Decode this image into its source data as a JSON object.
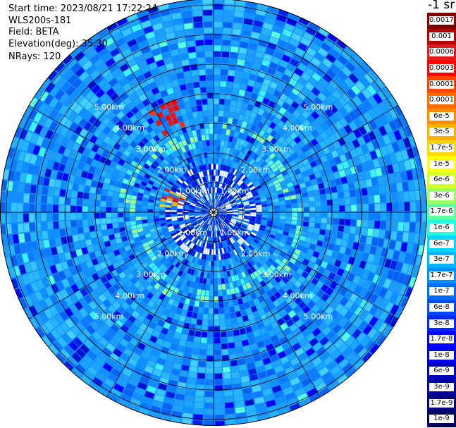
{
  "header": {
    "start_time": "Start time: 2023/08/21 17:22:24",
    "device": "WLS200s-181",
    "field": "Field: BETA",
    "elevation": "Elevation(deg): 35.30",
    "nrays": "NRays: 120"
  },
  "units_label": "-1 sr",
  "range_rings": {
    "labels": [
      "1.00km",
      "2.00km",
      "3.00km",
      "4.00km",
      "5.00km"
    ],
    "max_range_km": 7.2
  },
  "colorbar": {
    "labels": [
      "0.0017",
      "0.001",
      "0.0006",
      "0.0003",
      "0.00017",
      "0.0001",
      "6e-5",
      "3e-5",
      "1.7e-5",
      "1e-5",
      "6e-6",
      "3e-6",
      "1.7e-6",
      "1e-6",
      "6e-7",
      "3e-7",
      "1.7e-7",
      "1e-7",
      "6e-8",
      "3e-8",
      "1.7e-8",
      "1e-8",
      "6e-9",
      "3e-9",
      "1.7e-9",
      "1e-9"
    ],
    "colors": [
      "#7f0000",
      "#b20000",
      "#e31a1c",
      "#ff0000",
      "#ff4500",
      "#ff6a00",
      "#ff8c00",
      "#ffb000",
      "#ffd700",
      "#ffff00",
      "#d4ff2a",
      "#9cff63",
      "#5effa0",
      "#21ffd8",
      "#00d8ff",
      "#00b4ff",
      "#0090ff",
      "#006cff",
      "#0048ff",
      "#0028ff",
      "#0000ff",
      "#0000e0",
      "#0000c0",
      "#0000a0",
      "#000080",
      "#000060"
    ]
  }
}
